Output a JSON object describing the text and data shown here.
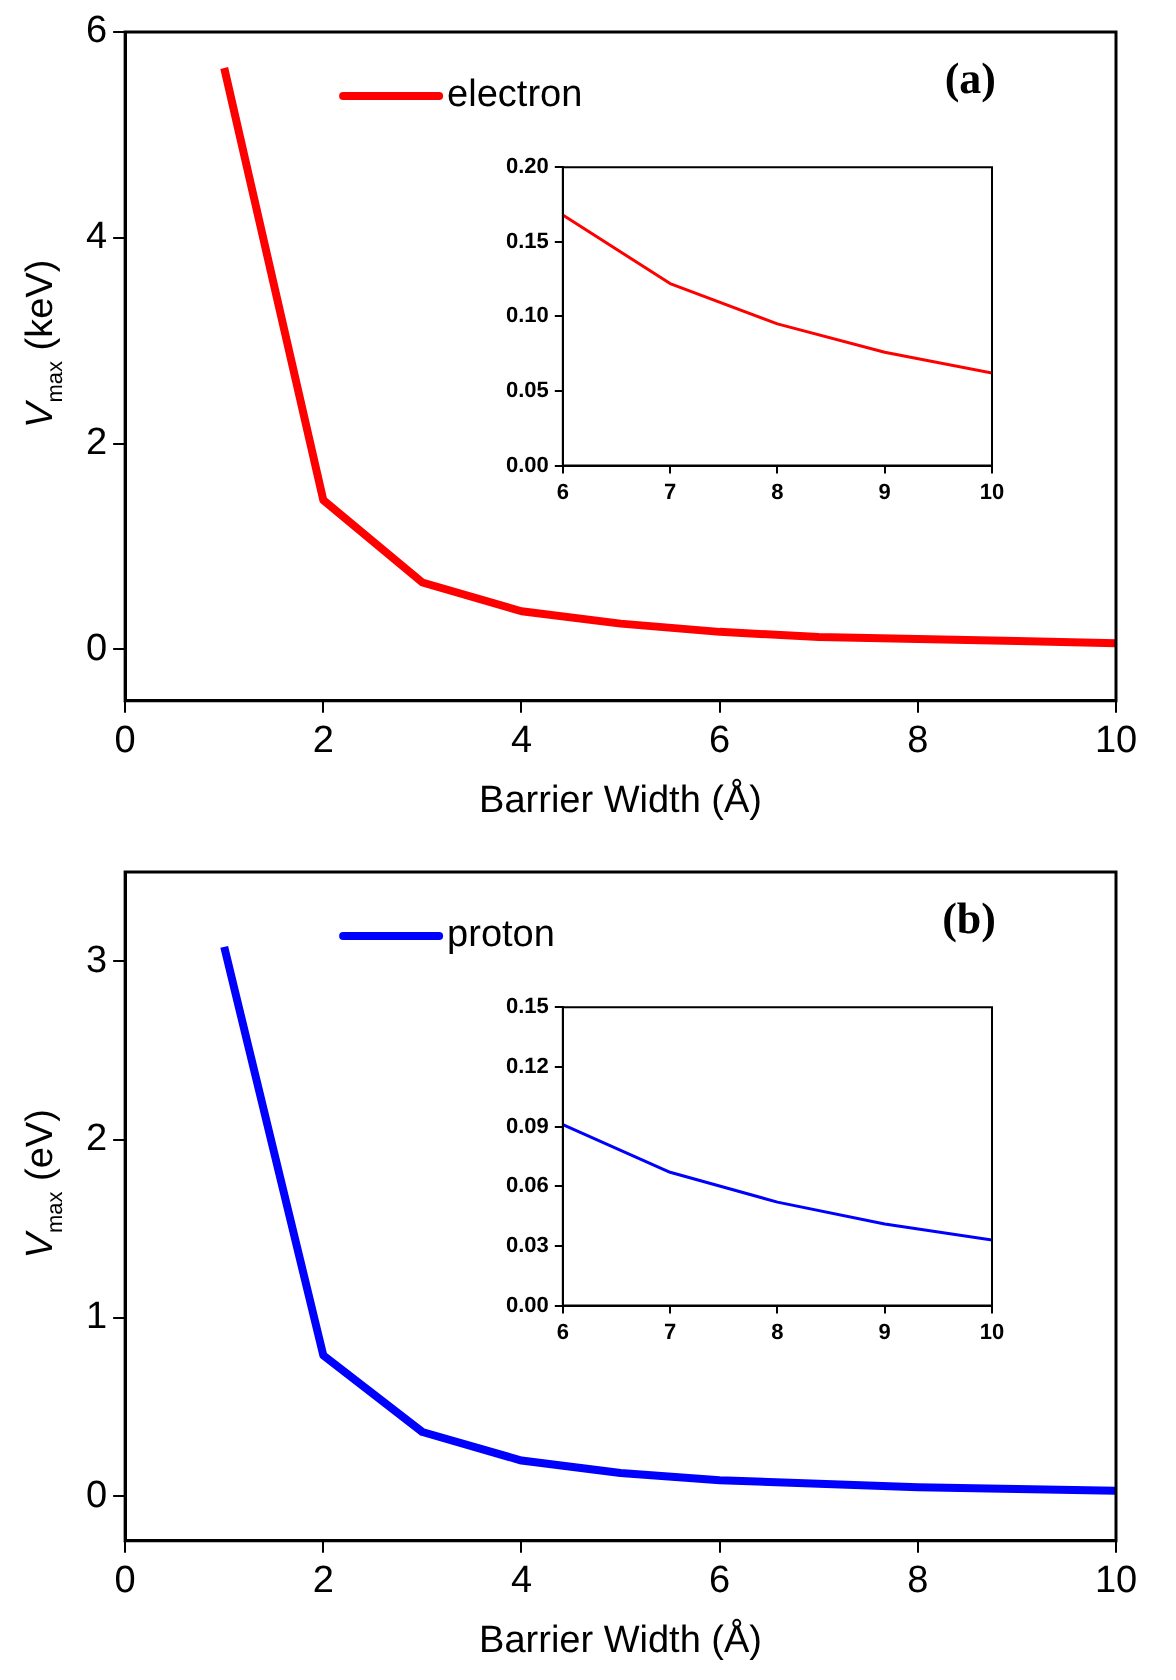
{
  "chart_data": [
    {
      "type": "line",
      "ylabel": "V$_{max}$ (keV)",
      "xlabel": "Barrier Width (Å)",
      "annotations": [
        "(a)"
      ],
      "x": [
        1,
        2,
        3,
        4,
        5,
        6,
        7,
        8,
        9,
        10
      ],
      "series": [
        {
          "name": "electron",
          "color": "#ff0000",
          "values": [
            5.65,
            1.45,
            0.65,
            0.37,
            0.25,
            0.17,
            0.12,
            0.1,
            0.08,
            0.06
          ]
        }
      ],
      "xlim": [
        0,
        10
      ],
      "xticks": [
        0,
        2,
        4,
        6,
        8,
        10
      ],
      "ylim": [
        -0.5,
        6
      ],
      "yticks": [
        0,
        2,
        4,
        6
      ],
      "grid": false,
      "legend": "top",
      "marker": "none",
      "line_style": "solid"
    },
    {
      "type": "line",
      "x": [
        6,
        7,
        8,
        9,
        10
      ],
      "series": [
        {
          "color": "#ff0000",
          "values": [
            0.168,
            0.122,
            0.095,
            0.076,
            0.062
          ]
        }
      ],
      "xlim": [
        6,
        10
      ],
      "xticks": [
        6,
        7,
        8,
        9,
        10
      ],
      "ylim": [
        0,
        0.2
      ],
      "yticks": [
        {
          "value": 0,
          "label": "0.00"
        },
        {
          "value": 0.05,
          "label": "0.05"
        },
        {
          "value": 0.1,
          "label": "0.10"
        },
        {
          "value": 0.15,
          "label": "0.15"
        },
        {
          "value": 0.2,
          "label": "0.20"
        }
      ],
      "grid": false,
      "marker": "none",
      "line_style": "solid"
    },
    {
      "type": "line",
      "ylabel": "V$_{max}$ (eV)",
      "xlabel": "Barrier Width (Å)",
      "annotations": [
        "(b)"
      ],
      "x": [
        1,
        2,
        3,
        4,
        5,
        6,
        7,
        8,
        9,
        10
      ],
      "series": [
        {
          "name": "proton",
          "color": "#0000ff",
          "values": [
            3.08,
            0.79,
            0.36,
            0.2,
            0.13,
            0.09,
            0.07,
            0.05,
            0.04,
            0.03
          ]
        }
      ],
      "xlim": [
        0,
        10
      ],
      "xticks": [
        0,
        2,
        4,
        6,
        8,
        10
      ],
      "ylim": [
        -0.25,
        3.5
      ],
      "yticks": [
        0,
        1,
        2,
        3
      ],
      "grid": false,
      "legend": "top",
      "marker": "none",
      "line_style": "solid"
    },
    {
      "type": "line",
      "x": [
        6,
        7,
        8,
        9,
        10
      ],
      "series": [
        {
          "color": "#0000ff",
          "values": [
            0.091,
            0.067,
            0.052,
            0.041,
            0.033
          ]
        }
      ],
      "xlim": [
        6,
        10
      ],
      "xticks": [
        6,
        7,
        8,
        9,
        10
      ],
      "ylim": [
        0,
        0.15
      ],
      "yticks": [
        {
          "value": 0,
          "label": "0.00"
        },
        {
          "value": 0.03,
          "label": "0.03"
        },
        {
          "value": 0.06,
          "label": "0.06"
        },
        {
          "value": 0.09,
          "label": "0.09"
        },
        {
          "value": 0.12,
          "label": "0.12"
        },
        {
          "value": 0.15,
          "label": "0.15"
        }
      ],
      "grid": false,
      "marker": "none",
      "line_style": "solid"
    }
  ]
}
